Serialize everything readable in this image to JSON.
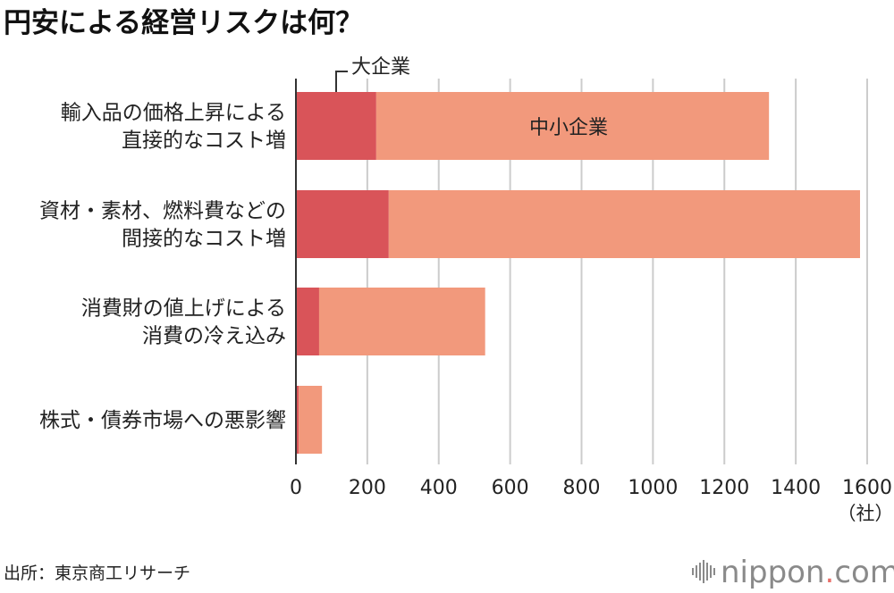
{
  "chart_data": {
    "type": "bar",
    "orientation": "horizontal",
    "stacked": true,
    "title": "円安による経営リスクは何？",
    "categories": [
      [
        "輸入品の価格上昇による",
        "直接的なコスト増"
      ],
      [
        "資材・素材、燃料費などの",
        "間接的なコスト増"
      ],
      [
        "消費財の値上げによる",
        "消費の冷え込み"
      ],
      [
        "株式・債券市場への悪影響"
      ]
    ],
    "series": [
      {
        "name": "大企業",
        "values": [
          225,
          260,
          65,
          8
        ],
        "color": "#d95459"
      },
      {
        "name": "中小企業",
        "values": [
          1100,
          1320,
          465,
          65
        ],
        "color": "#f2997c"
      }
    ],
    "xlim": [
      0,
      1600
    ],
    "xticks": [
      0,
      200,
      400,
      600,
      800,
      1000,
      1200,
      1400,
      1600
    ],
    "xunit": "（社）",
    "grid": true,
    "annotations": {
      "large": "大企業",
      "small": "中小企業"
    }
  },
  "footer": {
    "source": "出所：東京商工リサーチ",
    "logo_main": "nippon",
    "logo_dot": ".",
    "logo_tail": "com"
  },
  "colors": {
    "grid": "#cccccc",
    "axis": "#333333",
    "logo": "#8a8a8a",
    "logo_accent": "#e8706a"
  }
}
